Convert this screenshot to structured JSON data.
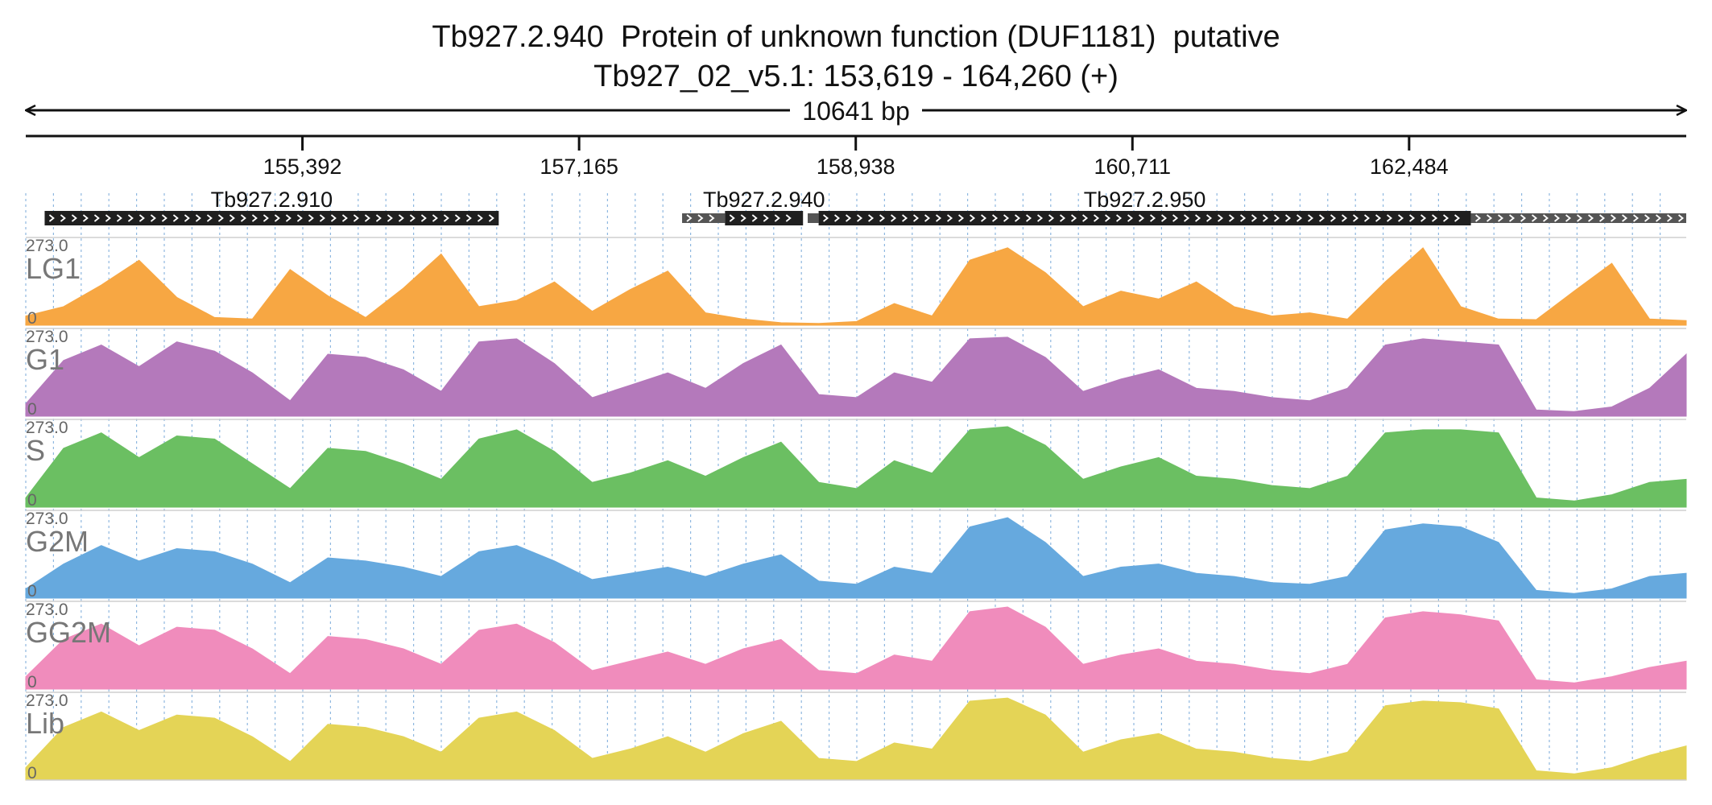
{
  "chart_data": {
    "type": "area",
    "title": "Tb927.2.940  Protein of unknown function (DUF1181)  putative",
    "subtitle": "Tb927_02_v5.1: 153,619 - 164,260 (+)",
    "span_label": "10641 bp",
    "region": {
      "chrom": "Tb927_02_v5.1",
      "start": 153619,
      "end": 164260,
      "strand": "+"
    },
    "xlim": [
      153619,
      164260
    ],
    "x_ticks": [
      155392,
      157165,
      158938,
      160711,
      162484
    ],
    "x_tick_labels": [
      "155,392",
      "157,165",
      "158,938",
      "160,711",
      "162,484"
    ],
    "genes": [
      {
        "name": "Tb927.2.910",
        "start": 153740,
        "end": 156650,
        "utr": []
      },
      {
        "name": "Tb927.2.940",
        "start": 158100,
        "end": 158600,
        "utr": [
          [
            157825,
            158100
          ]
        ]
      },
      {
        "name": "Tb927.2.950",
        "start": 158700,
        "end": 162880,
        "utr": [
          [
            158630,
            158700
          ],
          [
            162880,
            164260
          ]
        ]
      }
    ],
    "y_max_label": "273.0",
    "y_min_label": "0",
    "ylim": [
      0,
      273
    ],
    "grid": true,
    "x": [
      153619,
      153861,
      154103,
      154345,
      154587,
      154829,
      155071,
      155313,
      155555,
      155797,
      156039,
      156281,
      156523,
      156765,
      157007,
      157249,
      157491,
      157733,
      157975,
      158217,
      158459,
      158701,
      158943,
      159185,
      159427,
      159669,
      159911,
      160153,
      160395,
      160637,
      160879,
      161121,
      161363,
      161605,
      161847,
      162089,
      162331,
      162573,
      162815,
      163057,
      163299,
      163541,
      163783,
      164025,
      164260
    ],
    "series": [
      {
        "name": "LG1",
        "color": "#f7a743",
        "values": [
          30,
          60,
          130,
          210,
          90,
          25,
          20,
          180,
          95,
          25,
          120,
          230,
          60,
          80,
          140,
          45,
          115,
          175,
          40,
          20,
          8,
          6,
          12,
          70,
          30,
          210,
          250,
          170,
          60,
          110,
          85,
          140,
          60,
          30,
          40,
          20,
          140,
          250,
          60,
          20,
          18,
          110,
          200,
          20,
          15
        ]
      },
      {
        "name": "G1",
        "color": "#b479bb",
        "values": [
          40,
          180,
          230,
          160,
          240,
          210,
          140,
          50,
          200,
          190,
          150,
          80,
          240,
          250,
          170,
          60,
          100,
          140,
          90,
          170,
          230,
          70,
          60,
          140,
          110,
          250,
          255,
          190,
          80,
          120,
          150,
          90,
          80,
          60,
          50,
          90,
          230,
          250,
          240,
          230,
          20,
          15,
          30,
          90,
          200
        ]
      },
      {
        "name": "S",
        "color": "#6bbf62",
        "values": [
          30,
          190,
          240,
          160,
          230,
          220,
          140,
          60,
          190,
          180,
          140,
          90,
          220,
          250,
          180,
          80,
          110,
          150,
          100,
          160,
          210,
          80,
          60,
          150,
          110,
          250,
          260,
          200,
          90,
          130,
          160,
          100,
          90,
          70,
          60,
          100,
          240,
          250,
          250,
          240,
          30,
          20,
          40,
          80,
          90
        ]
      },
      {
        "name": "G2M",
        "color": "#66a9de",
        "values": [
          30,
          110,
          170,
          120,
          160,
          150,
          110,
          50,
          130,
          120,
          100,
          70,
          150,
          170,
          120,
          60,
          80,
          100,
          70,
          110,
          140,
          55,
          45,
          100,
          80,
          230,
          260,
          180,
          70,
          100,
          110,
          80,
          70,
          50,
          45,
          70,
          220,
          240,
          230,
          180,
          25,
          15,
          30,
          70,
          80
        ]
      },
      {
        "name": "GG2M",
        "color": "#f08cbc",
        "values": [
          40,
          160,
          210,
          140,
          200,
          190,
          130,
          50,
          170,
          160,
          130,
          80,
          190,
          210,
          150,
          60,
          90,
          120,
          80,
          130,
          160,
          60,
          50,
          110,
          90,
          250,
          265,
          200,
          80,
          110,
          130,
          90,
          80,
          60,
          50,
          80,
          230,
          250,
          240,
          220,
          30,
          20,
          40,
          70,
          90
        ]
      },
      {
        "name": "Lib",
        "color": "#e4d456",
        "values": [
          40,
          170,
          220,
          160,
          210,
          200,
          140,
          60,
          180,
          170,
          140,
          90,
          200,
          220,
          160,
          70,
          100,
          140,
          90,
          150,
          190,
          70,
          60,
          120,
          100,
          255,
          265,
          210,
          90,
          130,
          150,
          100,
          90,
          70,
          60,
          90,
          240,
          255,
          250,
          230,
          30,
          20,
          40,
          80,
          110
        ]
      }
    ]
  }
}
